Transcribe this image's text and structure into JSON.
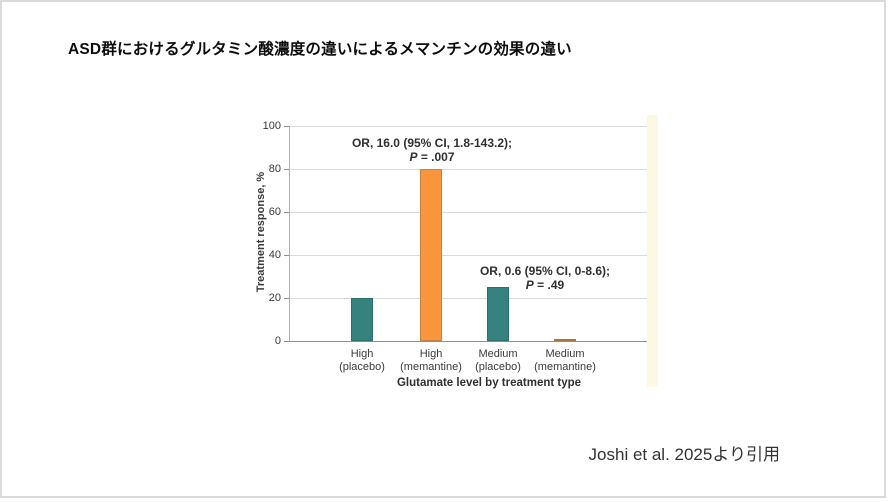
{
  "slide": {
    "title": "ASD群におけるグルタミン酸濃度の違いによるメマンチンの効果の違い",
    "citation": "Joshi et al. 2025より引用"
  },
  "chart_data": {
    "type": "bar",
    "title": "",
    "xlabel": "Glutamate level by treatment type",
    "ylabel": "Treatment response, %",
    "ylim": [
      0,
      100
    ],
    "yticks": [
      0,
      20,
      40,
      60,
      80,
      100
    ],
    "grid": true,
    "legend": "none",
    "categories": [
      {
        "line1": "High",
        "line2": "(placebo)"
      },
      {
        "line1": "High",
        "line2": "(memantine)"
      },
      {
        "line1": "Medium",
        "line2": "(placebo)"
      },
      {
        "line1": "Medium",
        "line2": "(memantine)"
      }
    ],
    "values": [
      20,
      80,
      25,
      0.8
    ],
    "bar_fill_colors": [
      "#35827e",
      "#f9953c",
      "#35827e",
      "#f9953c"
    ],
    "bar_border_colors": [
      "#2c6f6b",
      "#c9813f",
      "#2c6f6b",
      "#a9743d"
    ],
    "annotations": [
      {
        "line1": "OR, 16.0 (95% CI, 1.8-143.2);",
        "p": "P",
        "p_rest": " = .007"
      },
      {
        "line1": "OR, 0.6 (95% CI, 0-8.6);",
        "p": "P",
        "p_rest": " = .49"
      }
    ],
    "colors": {
      "teal": "#35827e",
      "orange": "#f9953c",
      "grid": "#dadada",
      "axis": "#8e8e8e",
      "figure_strip": "#fcf8e3"
    }
  }
}
